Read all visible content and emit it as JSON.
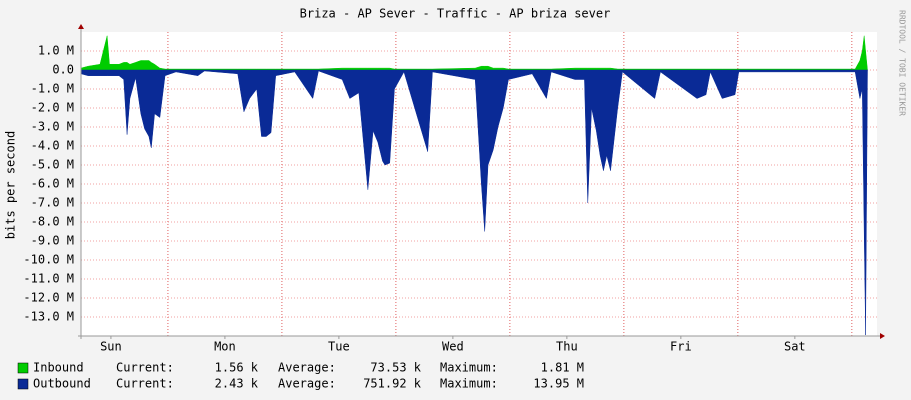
{
  "chart_data": {
    "type": "area",
    "title": "Briza - AP Sever - Traffic - AP briza sever",
    "y_label": "bits per second",
    "watermark": "RRDTOOL / TOBI OETIKER",
    "x": [
      0,
      1.5,
      4,
      5.5,
      6,
      8,
      9,
      9.7,
      10.3,
      11.5,
      12.6,
      13.4,
      14.3,
      14.8,
      15.5,
      16.6,
      17.7,
      20,
      24.6,
      26,
      33,
      34.3,
      35.5,
      37,
      38,
      39,
      40,
      41,
      45,
      48.8,
      50,
      55,
      56.6,
      58.5,
      60.4,
      61.5,
      62.5,
      63.5,
      64,
      65,
      66,
      68,
      73,
      74,
      83,
      84.3,
      85,
      85.7,
      86.8,
      87.8,
      88.9,
      90,
      95,
      98,
      99,
      104,
      106,
      106.7,
      107.5,
      108.5,
      109.3,
      110,
      110.7,
      111.5,
      113,
      114,
      120.8,
      122,
      129.7,
      131.6,
      132.5,
      135,
      137.7,
      138.5,
      150,
      163,
      164,
      164.5,
      164.9,
      165.2,
      165.6
    ],
    "series": [
      {
        "name": "Inbound",
        "color": "#00cc00",
        "values": [
          0.1,
          0.2,
          0.3,
          1.8,
          0.3,
          0.3,
          0.4,
          0.4,
          0.3,
          0.4,
          0.5,
          0.5,
          0.5,
          0.4,
          0.3,
          0.1,
          0.05,
          0.05,
          0.05,
          0.05,
          0.05,
          0.05,
          0.05,
          0.05,
          0.05,
          0.05,
          0.05,
          0.05,
          0.05,
          0.05,
          0.05,
          0.1,
          0.1,
          0.1,
          0.1,
          0.1,
          0.1,
          0.1,
          0.1,
          0.1,
          0.05,
          0.05,
          0.05,
          0.05,
          0.1,
          0.2,
          0.2,
          0.2,
          0.1,
          0.1,
          0.1,
          0.05,
          0.05,
          0.05,
          0.05,
          0.1,
          0.1,
          0.1,
          0.1,
          0.1,
          0.1,
          0.1,
          0.1,
          0.1,
          0.05,
          0.05,
          0.05,
          0.05,
          0.05,
          0.05,
          0.05,
          0.05,
          0.05,
          0.05,
          0.05,
          0.05,
          0.5,
          1.0,
          1.8,
          1.0,
          0
        ]
      },
      {
        "name": "Outbound",
        "color": "#0a2a96",
        "values": [
          -0.2,
          -0.3,
          -0.3,
          -0.3,
          -0.3,
          -0.3,
          -0.5,
          -3.4,
          -1.5,
          -0.4,
          -2.3,
          -3.1,
          -3.5,
          -4.1,
          -2.3,
          -2.5,
          -0.3,
          -0.1,
          -0.3,
          -0.05,
          -0.2,
          -2.2,
          -1.5,
          -1.0,
          -3.5,
          -3.5,
          -3.3,
          -0.3,
          -0.1,
          -1.5,
          -0.05,
          -0.5,
          -1.5,
          -1.2,
          -6.3,
          -3.2,
          -3.8,
          -4.8,
          -5.0,
          -4.9,
          -1.0,
          -0.1,
          -4.3,
          -0.1,
          -0.5,
          -6.0,
          -8.5,
          -5.0,
          -4.2,
          -3.0,
          -2.0,
          -0.5,
          -0.2,
          -1.5,
          -0.1,
          -0.5,
          -0.5,
          -7.0,
          -2.0,
          -3.2,
          -4.5,
          -5.3,
          -4.5,
          -5.3,
          -2.0,
          -0.1,
          -1.5,
          -0.1,
          -1.5,
          -1.3,
          -0.1,
          -1.5,
          -1.3,
          -0.1,
          -0.1,
          -0.1,
          -1.5,
          -1.0,
          -8.5,
          -13.95,
          0
        ]
      }
    ],
    "xlim": [
      0,
      167.6
    ],
    "xticks": [
      {
        "value": 6.3,
        "label": "Sun"
      },
      {
        "value": 30.3,
        "label": "Mon"
      },
      {
        "value": 54.3,
        "label": "Tue"
      },
      {
        "value": 78.3,
        "label": "Wed"
      },
      {
        "value": 102.3,
        "label": "Thu"
      },
      {
        "value": 126.3,
        "label": "Fri"
      },
      {
        "value": 150.3,
        "label": "Sat"
      }
    ],
    "ylim": [
      -14,
      2
    ],
    "yticks": [
      {
        "value": 1,
        "label": "1.0 M"
      },
      {
        "value": 0,
        "label": "0.0"
      },
      {
        "value": -1,
        "label": "-1.0 M"
      },
      {
        "value": -2,
        "label": "-2.0 M"
      },
      {
        "value": -3,
        "label": "-3.0 M"
      },
      {
        "value": -4,
        "label": "-4.0 M"
      },
      {
        "value": -5,
        "label": "-5.0 M"
      },
      {
        "value": -6,
        "label": "-6.0 M"
      },
      {
        "value": -7,
        "label": "-7.0 M"
      },
      {
        "value": -8,
        "label": "-8.0 M"
      },
      {
        "value": -9,
        "label": "-9.0 M"
      },
      {
        "value": -10,
        "label": "-10.0 M"
      },
      {
        "value": -11,
        "label": "-11.0 M"
      },
      {
        "value": -12,
        "label": "-12.0 M"
      },
      {
        "value": -13,
        "label": "-13.0 M"
      }
    ],
    "grid": true,
    "stat_labels": [
      "Current:",
      "Average:",
      "Maximum:"
    ],
    "stats": [
      [
        "1.56 k",
        "73.53 k",
        "1.81 M"
      ],
      [
        "2.43 k",
        "751.92 k",
        "13.95 M"
      ]
    ]
  }
}
